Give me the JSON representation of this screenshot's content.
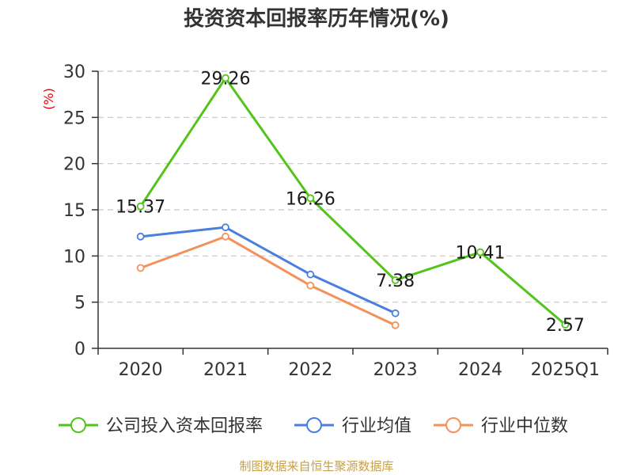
{
  "chart_data": {
    "type": "line",
    "title": "投资资本回报率历年情况(%)",
    "ylabel": "(%)",
    "categories": [
      "2020",
      "2021",
      "2022",
      "2023",
      "2024",
      "2025Q1"
    ],
    "ylim": [
      0,
      30
    ],
    "yticks": [
      0,
      5,
      10,
      15,
      20,
      25,
      30
    ],
    "grid": true,
    "legend_position": "bottom",
    "series": [
      {
        "name": "公司投入资本回报率",
        "color": "#52c41a",
        "values": [
          15.37,
          29.26,
          16.26,
          7.38,
          10.41,
          2.57
        ],
        "labels": [
          "15.37",
          "29.26",
          "16.26",
          "7.38",
          "10.41",
          "2.57"
        ]
      },
      {
        "name": "行业均值",
        "color": "#4a7fe0",
        "values": [
          12.1,
          13.1,
          8.0,
          3.8,
          null,
          null
        ]
      },
      {
        "name": "行业中位数",
        "color": "#f4915a",
        "values": [
          8.7,
          12.1,
          6.8,
          2.5,
          null,
          null
        ]
      }
    ],
    "source": "制图数据来自恒生聚源数据库"
  }
}
